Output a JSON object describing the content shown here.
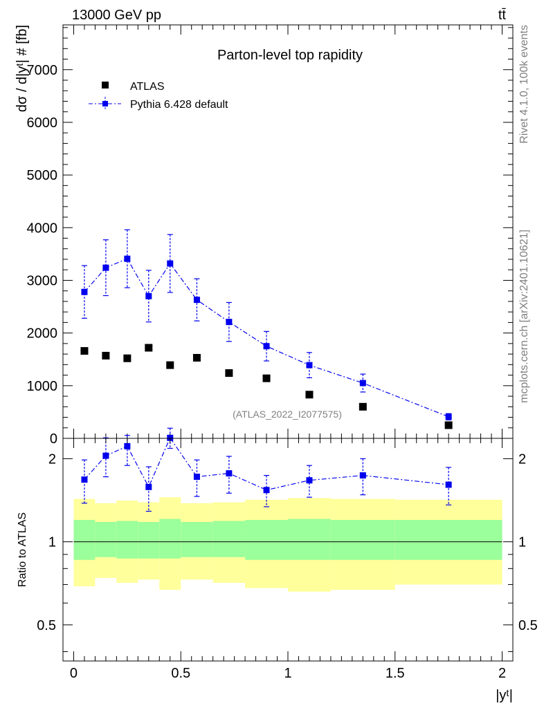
{
  "header": {
    "energy_label": "13000 GeV pp",
    "process_label": "tt̄"
  },
  "side_labels": {
    "rivet": "Rivet 4.1.0,  100k events",
    "source": "mcplots.cern.ch [arXiv:2401.10621]"
  },
  "watermark": "(ATLAS_2022_I2077575)",
  "colors": {
    "mc": "#0000ee",
    "data": "#000000",
    "band_inner": "#9bff9b",
    "band_outer": "#ffff9b"
  },
  "chart_data": [
    {
      "type": "scatter",
      "title": "Parton-level top rapidity",
      "ylabel": "dσ / d|yᵗ| # [fb]",
      "xlim": [
        -0.05,
        2.05
      ],
      "ylim": [
        0,
        7850
      ],
      "yticks": [
        0,
        1000,
        2000,
        3000,
        4000,
        5000,
        6000,
        7000
      ],
      "ytick_labels": [
        "0",
        "1000",
        "2000",
        "3000",
        "4000",
        "5000",
        "6000",
        "7000"
      ],
      "legend": {
        "position": "top-left",
        "entries": [
          "ATLAS",
          "Pythia 6.428 default"
        ]
      },
      "series": [
        {
          "name": "ATLAS",
          "x": [
            0.05,
            0.15,
            0.25,
            0.35,
            0.45,
            0.575,
            0.725,
            0.9,
            1.1,
            1.35,
            1.75
          ],
          "y": [
            1660,
            1570,
            1520,
            1720,
            1390,
            1530,
            1240,
            1140,
            830,
            600,
            250
          ]
        },
        {
          "name": "Pythia 6.428 default",
          "x": [
            0.05,
            0.15,
            0.25,
            0.35,
            0.45,
            0.575,
            0.725,
            0.9,
            1.1,
            1.35,
            1.75
          ],
          "y": [
            2780,
            3240,
            3410,
            2700,
            3320,
            2630,
            2210,
            1750,
            1390,
            1050,
            410
          ],
          "err": [
            500,
            530,
            550,
            490,
            550,
            400,
            370,
            280,
            240,
            170,
            60
          ]
        }
      ]
    },
    {
      "type": "scatter",
      "ylabel": "Ratio to ATLAS",
      "xlabel": "|yᵗ|",
      "xlim": [
        -0.05,
        2.05
      ],
      "ylim": [
        0.37,
        2.37
      ],
      "xticks": [
        0,
        0.5,
        1,
        1.5,
        2
      ],
      "xtick_labels": [
        "0",
        "0.5",
        "1",
        "1.5",
        "2"
      ],
      "yticks": [
        0.5,
        1,
        2
      ],
      "ytick_labels": [
        "0.5",
        "1",
        "2"
      ],
      "bins": [
        [
          0,
          0.1
        ],
        [
          0.1,
          0.2
        ],
        [
          0.2,
          0.3
        ],
        [
          0.3,
          0.4
        ],
        [
          0.4,
          0.5
        ],
        [
          0.5,
          0.65
        ],
        [
          0.65,
          0.8
        ],
        [
          0.8,
          1.0
        ],
        [
          1.0,
          1.2
        ],
        [
          1.2,
          1.5
        ],
        [
          1.5,
          2.0
        ]
      ],
      "band_inner": [
        [
          0.86,
          1.2
        ],
        [
          0.88,
          1.18
        ],
        [
          0.87,
          1.19
        ],
        [
          0.87,
          1.18
        ],
        [
          0.87,
          1.21
        ],
        [
          0.88,
          1.18
        ],
        [
          0.88,
          1.19
        ],
        [
          0.86,
          1.2
        ],
        [
          0.86,
          1.21
        ],
        [
          0.86,
          1.2
        ],
        [
          0.86,
          1.2
        ]
      ],
      "band_outer": [
        [
          0.69,
          1.43
        ],
        [
          0.74,
          1.38
        ],
        [
          0.71,
          1.41
        ],
        [
          0.73,
          1.39
        ],
        [
          0.67,
          1.45
        ],
        [
          0.73,
          1.38
        ],
        [
          0.71,
          1.39
        ],
        [
          0.68,
          1.42
        ],
        [
          0.66,
          1.44
        ],
        [
          0.67,
          1.43
        ],
        [
          0.7,
          1.42
        ]
      ],
      "series": [
        {
          "name": "Pythia 6.428 default",
          "x": [
            0.05,
            0.15,
            0.25,
            0.35,
            0.45,
            0.575,
            0.725,
            0.9,
            1.1,
            1.35,
            1.75
          ],
          "y": [
            1.68,
            2.05,
            2.22,
            1.58,
            2.38,
            1.72,
            1.77,
            1.54,
            1.67,
            1.74,
            1.61
          ],
          "err_low": [
            0.3,
            0.33,
            0.33,
            0.29,
            0.2,
            0.26,
            0.27,
            0.2,
            0.22,
            0.26,
            0.25
          ],
          "err_high": [
            0.3,
            0.33,
            0.21,
            0.29,
            0.2,
            0.26,
            0.27,
            0.2,
            0.22,
            0.26,
            0.25
          ]
        }
      ]
    }
  ]
}
